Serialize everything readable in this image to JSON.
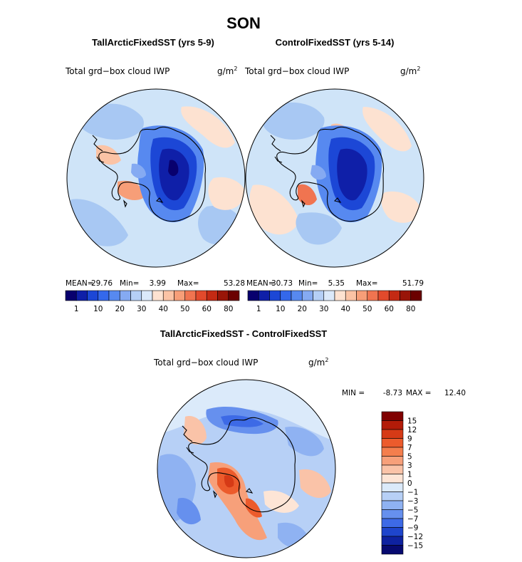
{
  "figure": {
    "title": "SON",
    "ocean_color": "#cfe4f8"
  },
  "chart_data": [
    {
      "type": "heatmap",
      "id": "tall",
      "title": "TallArcticFixedSST (yrs 5-9)",
      "variable": "Total grd−box cloud IWP",
      "units": "g/m",
      "units_exp": "2",
      "stats": {
        "mean_label": "MEAN=",
        "mean": "29.76",
        "min_label": "Min=",
        "min": "3.99",
        "max_label": "Max=",
        "max": "53.28"
      },
      "levels": [
        "1",
        "10",
        "20",
        "30",
        "40",
        "50",
        "60",
        "80"
      ],
      "colors": [
        "#08006e",
        "#0f1fa8",
        "#1c47d6",
        "#3468eb",
        "#5789f0",
        "#85aaf2",
        "#b5cff6",
        "#dbe9fa",
        "#fde2d1",
        "#fbc3a5",
        "#f79e78",
        "#f07450",
        "#e24a2c",
        "#c42a14",
        "#991508",
        "#6b0000"
      ]
    },
    {
      "type": "heatmap",
      "id": "control",
      "title": "ControlFixedSST (yrs 5-14)",
      "variable": "Total grd−box cloud IWP",
      "units": "g/m",
      "units_exp": "2",
      "stats": {
        "mean_label": "MEAN=",
        "mean": "30.73",
        "min_label": "Min=",
        "min": "5.35",
        "max_label": "Max=",
        "max": "51.79"
      },
      "levels": [
        "1",
        "10",
        "20",
        "30",
        "40",
        "50",
        "60",
        "80"
      ],
      "colors": [
        "#08006e",
        "#0f1fa8",
        "#1c47d6",
        "#3468eb",
        "#5789f0",
        "#85aaf2",
        "#b5cff6",
        "#dbe9fa",
        "#fde2d1",
        "#fbc3a5",
        "#f79e78",
        "#f07450",
        "#e24a2c",
        "#c42a14",
        "#991508",
        "#6b0000"
      ]
    },
    {
      "type": "heatmap",
      "id": "diff",
      "title": "TallArcticFixedSST - ControlFixedSST",
      "variable": "Total grd−box cloud IWP",
      "units": "g/m",
      "units_exp": "2",
      "stats": {
        "min_label": "MIN =",
        "min": "-8.73",
        "max_label": "MAX =",
        "max": "12.40"
      },
      "levels": [
        "15",
        "12",
        "9",
        "7",
        "5",
        "3",
        "1",
        "0",
        "−1",
        "−3",
        "−5",
        "−7",
        "−9",
        "−12",
        "−15"
      ],
      "colors": [
        "#800000",
        "#b31b08",
        "#d63a16",
        "#ec5b2c",
        "#f47e4d",
        "#f7a07a",
        "#fac3a8",
        "#fde5d6",
        "#dbeafa",
        "#b7d0f6",
        "#8fb2f2",
        "#6690ee",
        "#3d6ae6",
        "#1e45cc",
        "#0e22a0",
        "#070a70"
      ]
    }
  ]
}
